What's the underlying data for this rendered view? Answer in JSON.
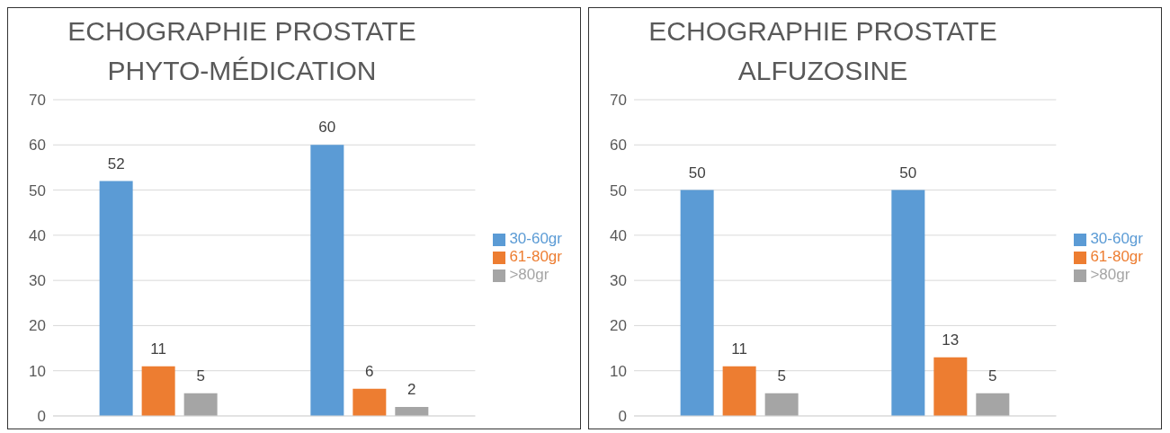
{
  "chart_data": [
    {
      "type": "bar",
      "title": "ECHOGRAPHIE  PROSTATE\nPHYTO-MÉDICATION",
      "categories": [
        null,
        null
      ],
      "series": [
        {
          "name": "30-60gr",
          "color": "#5b9bd5",
          "values": [
            52,
            60
          ]
        },
        {
          "name": "61-80gr",
          "color": "#ed7d31",
          "values": [
            11,
            6
          ]
        },
        {
          "name": ">80gr",
          "color": "#a5a5a5",
          "values": [
            5,
            2
          ]
        }
      ],
      "ylim": [
        0,
        70
      ],
      "yticks": [
        0,
        10,
        20,
        30,
        40,
        50,
        60,
        70
      ],
      "grid": "y",
      "legend": "right",
      "data_labels": true
    },
    {
      "type": "bar",
      "title": "ECHOGRAPHIE PROSTATE\nALFUZOSINE",
      "categories": [
        null,
        null
      ],
      "series": [
        {
          "name": "30-60gr",
          "color": "#5b9bd5",
          "values": [
            50,
            50
          ]
        },
        {
          "name": "61-80gr",
          "color": "#ed7d31",
          "values": [
            11,
            13
          ]
        },
        {
          "name": ">80gr",
          "color": "#a5a5a5",
          "values": [
            5,
            5
          ]
        }
      ],
      "ylim": [
        0,
        70
      ],
      "yticks": [
        0,
        10,
        20,
        30,
        40,
        50,
        60,
        70
      ],
      "grid": "y",
      "legend": "right",
      "data_labels": true
    }
  ]
}
